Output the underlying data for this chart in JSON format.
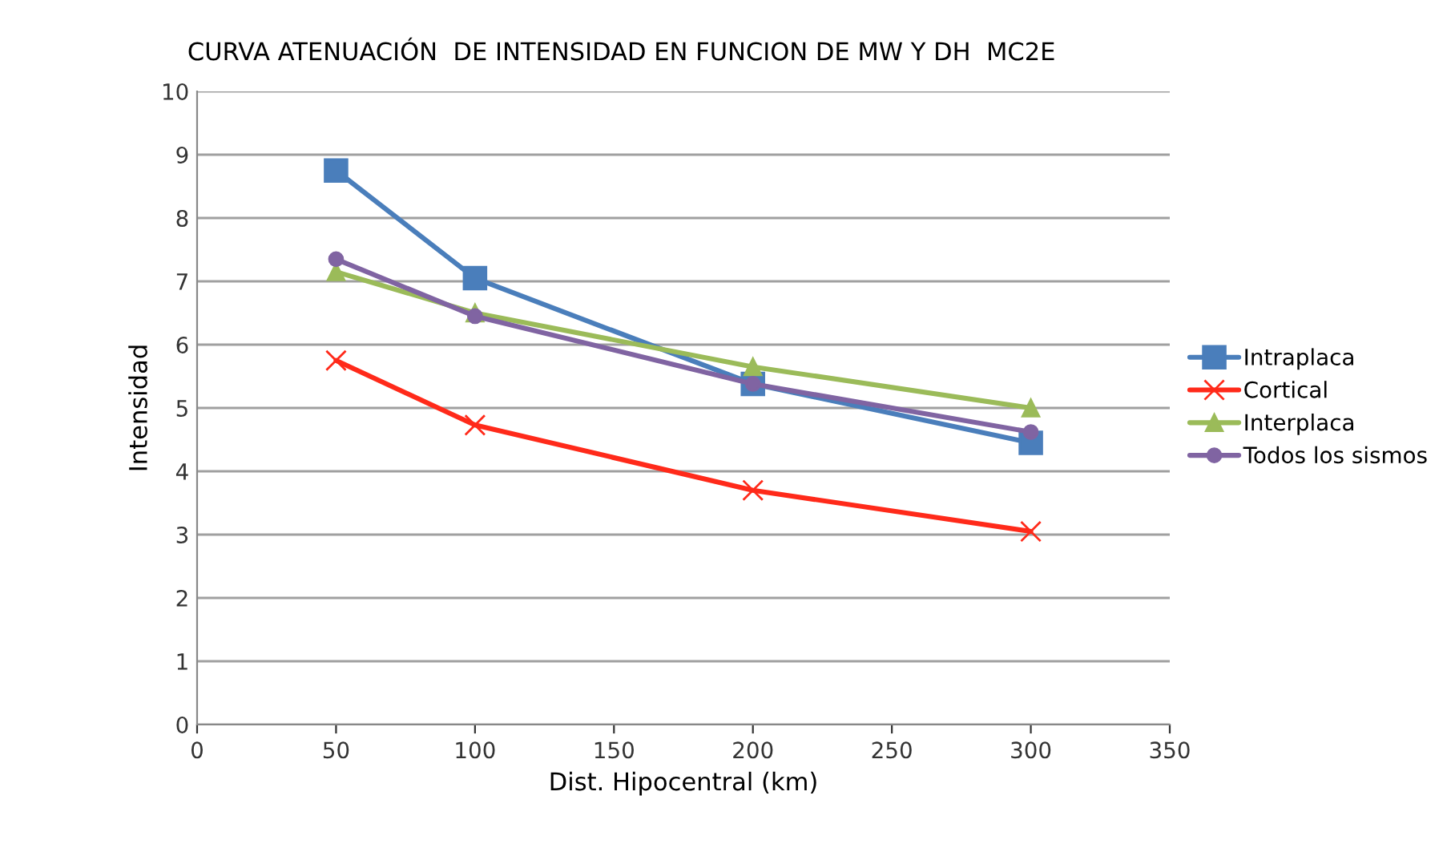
{
  "chart_data": {
    "type": "line",
    "title": "CURVA ATENUACIÓN  DE INTENSIDAD EN FUNCION DE MW Y DH  MC2E",
    "xlabel": "Dist. Hipocentral (km)",
    "ylabel": "Intensidad",
    "x": [
      50,
      100,
      200,
      300
    ],
    "series": [
      {
        "name": "Intraplaca",
        "color": "#4a7ebb",
        "marker": "square",
        "values": [
          8.75,
          7.05,
          5.38,
          4.45
        ]
      },
      {
        "name": "Cortical",
        "color": "#ff2a1a",
        "marker": "cross",
        "values": [
          5.75,
          4.73,
          3.7,
          3.05
        ]
      },
      {
        "name": "Interplaca",
        "color": "#9bbb59",
        "marker": "triangle",
        "values": [
          7.15,
          6.5,
          5.65,
          5.0
        ]
      },
      {
        "name": "Todos los sismos",
        "color": "#8064a2",
        "marker": "circle",
        "values": [
          7.35,
          6.45,
          5.38,
          4.62
        ]
      }
    ],
    "xlim": [
      0,
      350
    ],
    "xticks": [
      0,
      50,
      100,
      150,
      200,
      250,
      300,
      350
    ],
    "ylim": [
      0,
      10
    ],
    "yticks": [
      0,
      1,
      2,
      3,
      4,
      5,
      6,
      7,
      8,
      9,
      10
    ],
    "grid": "y",
    "legend": "right",
    "line_style": "solid"
  }
}
